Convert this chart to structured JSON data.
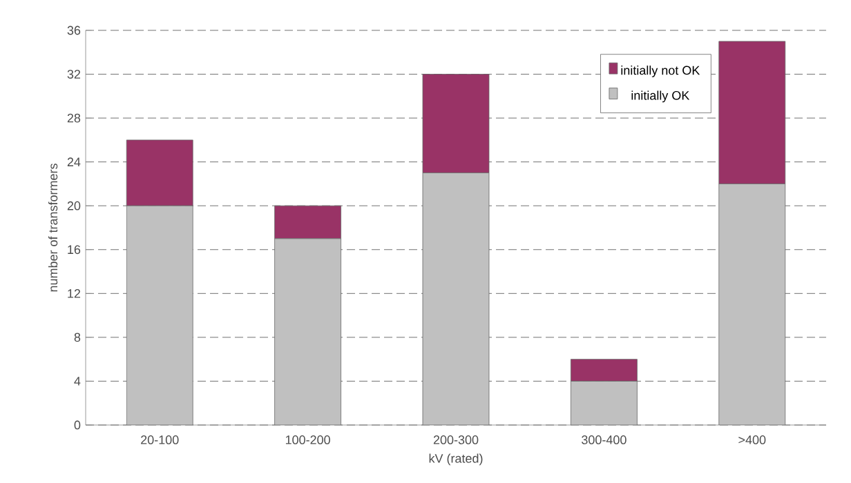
{
  "chart_data": {
    "type": "bar",
    "stacked": true,
    "xlabel": "kV (rated)",
    "ylabel": "number of transformers",
    "categories": [
      "20-100",
      "100-200",
      "200-300",
      "300-400",
      ">400"
    ],
    "series": [
      {
        "name": "initially OK",
        "color": "#c0c0c0",
        "values": [
          20,
          17,
          23,
          4,
          22
        ]
      },
      {
        "name": "initially not OK",
        "color": "#993366",
        "values": [
          6,
          3,
          9,
          2,
          13
        ]
      }
    ],
    "ylim": [
      0,
      36
    ],
    "yticks": [
      0,
      4,
      8,
      12,
      16,
      20,
      24,
      28,
      32,
      36
    ],
    "grid": "y",
    "legend": "top right"
  }
}
